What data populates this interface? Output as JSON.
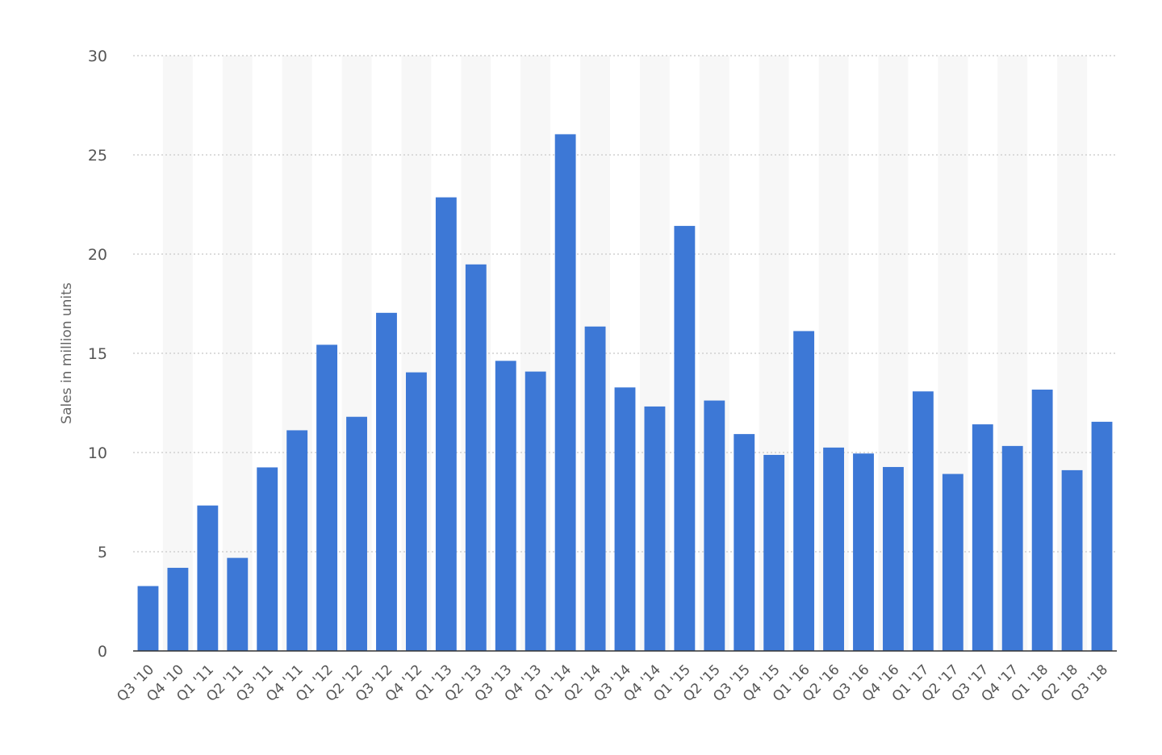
{
  "chart_data": {
    "type": "bar",
    "ylabel": "Sales in million units",
    "xlabel": "",
    "ylim": [
      0,
      30
    ],
    "yticks": [
      0,
      5,
      10,
      15,
      20,
      25,
      30
    ],
    "grid": true,
    "categories": [
      "Q3 '10",
      "Q4 '10",
      "Q1 '11",
      "Q2 '11",
      "Q3 '11",
      "Q4 '11",
      "Q1 '12",
      "Q2 '12",
      "Q3 '12",
      "Q4 '12",
      "Q1 '13",
      "Q2 '13",
      "Q3 '13",
      "Q4 '13",
      "Q1 '14",
      "Q2 '14",
      "Q3 '14",
      "Q4 '14",
      "Q1 '15",
      "Q2 '15",
      "Q3 '15",
      "Q4 '15",
      "Q1 '16",
      "Q2 '16",
      "Q3 '16",
      "Q4 '16",
      "Q1 '17",
      "Q2 '17",
      "Q3 '17",
      "Q4 '17",
      "Q1 '18",
      "Q2 '18",
      "Q3 '18"
    ],
    "values": [
      3.27,
      4.19,
      7.33,
      4.69,
      9.25,
      11.12,
      15.43,
      11.8,
      17.04,
      14.04,
      22.86,
      19.48,
      14.62,
      14.08,
      26.04,
      16.35,
      13.28,
      12.32,
      21.42,
      12.62,
      10.93,
      9.88,
      16.12,
      10.25,
      9.95,
      9.27,
      13.08,
      8.92,
      11.42,
      10.33,
      13.17,
      9.11,
      11.55
    ],
    "bar_color": "#3d78d6",
    "band_color": "#f7f7f7"
  }
}
